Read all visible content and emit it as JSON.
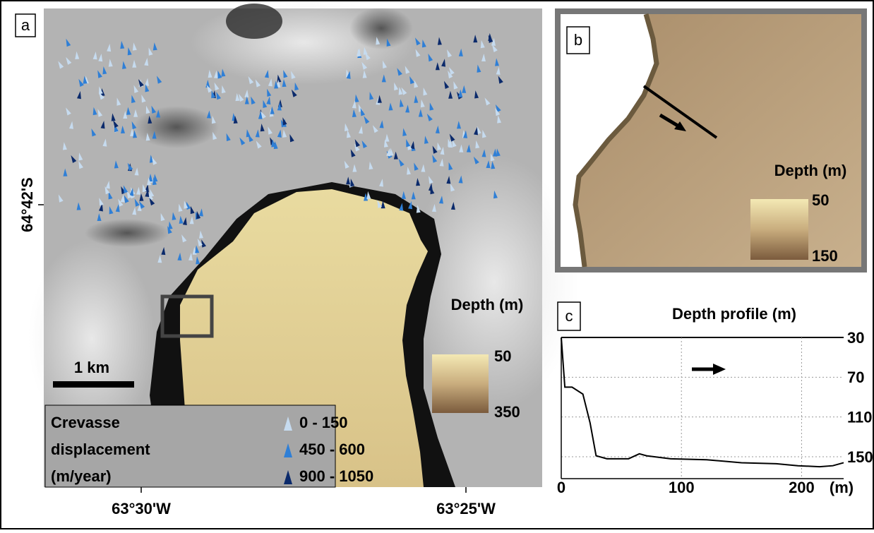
{
  "panel_a": {
    "label": "a",
    "latitude_label": "64°42'S",
    "longitude_labels": [
      "63°30'W",
      "63°25'W"
    ],
    "scale_bar": "1 km",
    "colorbar": {
      "title": "Depth (m)",
      "ticks": [
        50,
        350
      ]
    },
    "legend": {
      "title_lines": [
        "Crevasse",
        "displacement",
        "(m/year)"
      ],
      "items": [
        {
          "label": "0 - 150",
          "color": "#c6dbef"
        },
        {
          "label": "450 - 600",
          "color": "#2f7fd6"
        },
        {
          "label": "900 - 1050",
          "color": "#0b2a6b"
        }
      ]
    }
  },
  "panel_b": {
    "label": "b",
    "colorbar": {
      "title": "Depth (m)",
      "ticks": [
        50,
        150
      ]
    }
  },
  "chart_data": {
    "type": "line",
    "label": "c",
    "title": "Depth profile (m)",
    "x_label": "(m)",
    "x": [
      0,
      3,
      9,
      18,
      24,
      29,
      38,
      56,
      65,
      71,
      91,
      121,
      150,
      179,
      197,
      215,
      226,
      235
    ],
    "values": [
      30,
      80,
      80,
      87,
      116,
      149,
      152,
      152,
      147,
      149,
      152,
      153,
      156,
      157,
      159,
      160,
      159,
      156
    ],
    "color": "#000000",
    "xlim": [
      0,
      235
    ],
    "ylim": [
      30,
      172
    ],
    "y_reversed": true,
    "xticks": [
      0,
      100,
      200
    ],
    "yticks": [
      30,
      70,
      110,
      150
    ],
    "grid": true
  }
}
